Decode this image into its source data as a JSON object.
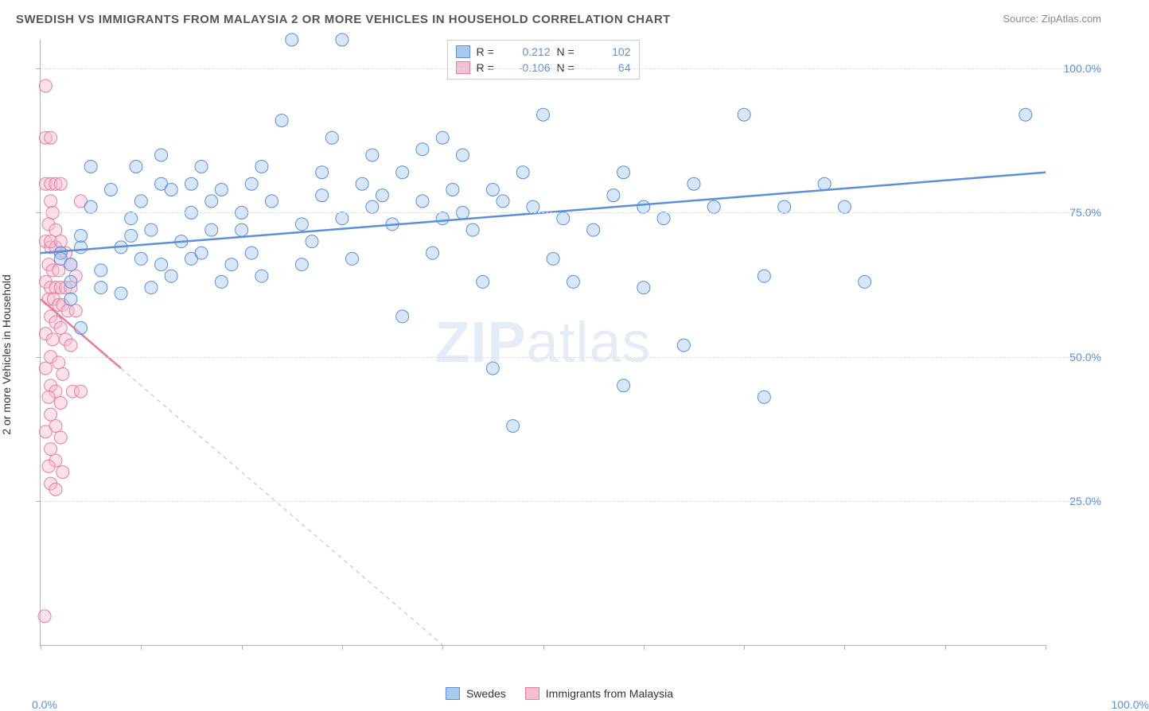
{
  "page": {
    "title": "SWEDISH VS IMMIGRANTS FROM MALAYSIA 2 OR MORE VEHICLES IN HOUSEHOLD CORRELATION CHART",
    "source": "Source: ZipAtlas.com",
    "watermark_a": "ZIP",
    "watermark_b": "atlas"
  },
  "chart": {
    "type": "scatter",
    "ylabel": "2 or more Vehicles in Household",
    "xlim": [
      0,
      100
    ],
    "ylim": [
      0,
      105
    ],
    "y_ticks": [
      25,
      50,
      75,
      100
    ],
    "y_tick_labels": [
      "25.0%",
      "50.0%",
      "75.0%",
      "100.0%"
    ],
    "x_minor_ticks": [
      0,
      10,
      20,
      30,
      40,
      50,
      60,
      70,
      80,
      90,
      100
    ],
    "x_label_min": "0.0%",
    "x_label_max": "100.0%",
    "background_color": "#ffffff",
    "grid_color": "#dddddd",
    "axis_color": "#b0b0b0",
    "label_fontsize": 14,
    "title_fontsize": 15,
    "marker_radius": 8,
    "marker_opacity": 0.45,
    "series": [
      {
        "name": "Swedes",
        "color_fill": "#a8c8ee",
        "color_stroke": "#5b8fd6",
        "R": "0.212",
        "N": "102",
        "trend": {
          "x1": 0,
          "y1": 68,
          "x2": 100,
          "y2": 82,
          "solid_until_x": 100
        },
        "points": [
          [
            2,
            68
          ],
          [
            2,
            67
          ],
          [
            3,
            66
          ],
          [
            3,
            63
          ],
          [
            3,
            60
          ],
          [
            4,
            69
          ],
          [
            4,
            71
          ],
          [
            4,
            55
          ],
          [
            5,
            83
          ],
          [
            5,
            76
          ],
          [
            6,
            62
          ],
          [
            6,
            65
          ],
          [
            7,
            79
          ],
          [
            8,
            61
          ],
          [
            8,
            69
          ],
          [
            9,
            74
          ],
          [
            9,
            71
          ],
          [
            9.5,
            83
          ],
          [
            10,
            67
          ],
          [
            10,
            77
          ],
          [
            11,
            72
          ],
          [
            11,
            62
          ],
          [
            12,
            66
          ],
          [
            12,
            80
          ],
          [
            12,
            85
          ],
          [
            13,
            79
          ],
          [
            13,
            64
          ],
          [
            14,
            70
          ],
          [
            15,
            80
          ],
          [
            15,
            75
          ],
          [
            15,
            67
          ],
          [
            16,
            68
          ],
          [
            16,
            83
          ],
          [
            17,
            72
          ],
          [
            17,
            77
          ],
          [
            18,
            63
          ],
          [
            18,
            79
          ],
          [
            19,
            66
          ],
          [
            20,
            75
          ],
          [
            20,
            72
          ],
          [
            21,
            80
          ],
          [
            21,
            68
          ],
          [
            22,
            64
          ],
          [
            22,
            83
          ],
          [
            23,
            77
          ],
          [
            24,
            91
          ],
          [
            25,
            105
          ],
          [
            26,
            73
          ],
          [
            26,
            66
          ],
          [
            27,
            70
          ],
          [
            28,
            78
          ],
          [
            28,
            82
          ],
          [
            29,
            88
          ],
          [
            30,
            105
          ],
          [
            30,
            74
          ],
          [
            31,
            67
          ],
          [
            32,
            80
          ],
          [
            33,
            76
          ],
          [
            33,
            85
          ],
          [
            34,
            78
          ],
          [
            35,
            73
          ],
          [
            36,
            57
          ],
          [
            36,
            82
          ],
          [
            38,
            77
          ],
          [
            38,
            86
          ],
          [
            39,
            68
          ],
          [
            40,
            74
          ],
          [
            40,
            88
          ],
          [
            41,
            79
          ],
          [
            42,
            75
          ],
          [
            42,
            85
          ],
          [
            43,
            72
          ],
          [
            44,
            63
          ],
          [
            45,
            48
          ],
          [
            45,
            79
          ],
          [
            46,
            77
          ],
          [
            47,
            38
          ],
          [
            48,
            82
          ],
          [
            49,
            76
          ],
          [
            50,
            92
          ],
          [
            51,
            67
          ],
          [
            52,
            74
          ],
          [
            53,
            63
          ],
          [
            55,
            72
          ],
          [
            57,
            78
          ],
          [
            58,
            45
          ],
          [
            58,
            82
          ],
          [
            60,
            76
          ],
          [
            60,
            62
          ],
          [
            62,
            74
          ],
          [
            64,
            52
          ],
          [
            65,
            80
          ],
          [
            67,
            76
          ],
          [
            70,
            92
          ],
          [
            72,
            43
          ],
          [
            72,
            64
          ],
          [
            74,
            76
          ],
          [
            78,
            80
          ],
          [
            80,
            76
          ],
          [
            82,
            63
          ],
          [
            98,
            92
          ]
        ]
      },
      {
        "name": "Immigrants from Malaysia",
        "color_fill": "#f7bdd0",
        "color_stroke": "#e87ba3",
        "R": "-0.106",
        "N": "64",
        "trend": {
          "x1": 0,
          "y1": 60,
          "x2": 40,
          "y2": 0,
          "solid_until_x": 8
        },
        "points": [
          [
            0.5,
            97
          ],
          [
            0.5,
            88
          ],
          [
            1,
            88
          ],
          [
            0.5,
            80
          ],
          [
            1,
            80
          ],
          [
            1.5,
            80
          ],
          [
            1,
            77
          ],
          [
            0.8,
            73
          ],
          [
            1.2,
            75
          ],
          [
            1.5,
            72
          ],
          [
            0.5,
            70
          ],
          [
            1,
            69
          ],
          [
            1.5,
            69
          ],
          [
            2,
            68
          ],
          [
            0.8,
            66
          ],
          [
            1.2,
            65
          ],
          [
            1.8,
            65
          ],
          [
            0.5,
            63
          ],
          [
            1,
            62
          ],
          [
            1.5,
            62
          ],
          [
            2,
            62
          ],
          [
            2.5,
            62
          ],
          [
            3,
            62
          ],
          [
            0.8,
            60
          ],
          [
            1.3,
            60
          ],
          [
            1.8,
            59
          ],
          [
            2.2,
            59
          ],
          [
            2.7,
            58
          ],
          [
            3.5,
            58
          ],
          [
            1,
            57
          ],
          [
            1.5,
            56
          ],
          [
            2,
            55
          ],
          [
            0.5,
            54
          ],
          [
            1.2,
            53
          ],
          [
            2.5,
            53
          ],
          [
            3,
            52
          ],
          [
            1,
            50
          ],
          [
            1.8,
            49
          ],
          [
            0.5,
            48
          ],
          [
            2.2,
            47
          ],
          [
            1,
            45
          ],
          [
            1.5,
            44
          ],
          [
            0.8,
            43
          ],
          [
            2,
            42
          ],
          [
            3.2,
            44
          ],
          [
            4,
            44
          ],
          [
            1,
            40
          ],
          [
            1.5,
            38
          ],
          [
            0.5,
            37
          ],
          [
            2,
            36
          ],
          [
            1,
            34
          ],
          [
            1.5,
            32
          ],
          [
            0.8,
            31
          ],
          [
            2.2,
            30
          ],
          [
            1,
            28
          ],
          [
            1.5,
            27
          ],
          [
            1,
            70
          ],
          [
            2,
            70
          ],
          [
            2.5,
            68
          ],
          [
            3,
            66
          ],
          [
            3.5,
            64
          ],
          [
            4,
            77
          ],
          [
            2,
            80
          ],
          [
            0.4,
            5
          ]
        ]
      }
    ],
    "legend_bottom": [
      {
        "label": "Swedes",
        "fill": "#a8c8ee",
        "stroke": "#5b8fd6"
      },
      {
        "label": "Immigrants from Malaysia",
        "fill": "#f7bdd0",
        "stroke": "#e87ba3"
      }
    ]
  }
}
